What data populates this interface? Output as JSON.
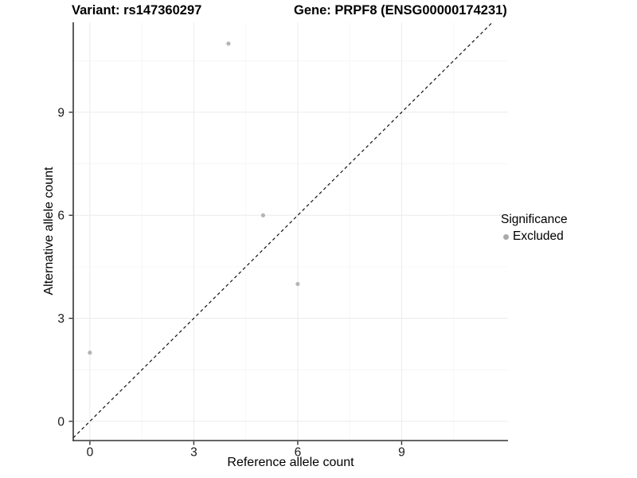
{
  "header": {
    "variant_title": "Variant: rs147360297",
    "gene_title": "Gene: PRPF8 (ENSG00000174231)"
  },
  "chart_data": {
    "type": "scatter",
    "xlabel": "Reference allele count",
    "ylabel": "Alternative allele count",
    "xlim": [
      -0.48,
      12.07
    ],
    "ylim": [
      -0.56,
      11.62
    ],
    "ticks": {
      "x": [
        0,
        3,
        6,
        9
      ],
      "y": [
        0,
        3,
        6,
        9
      ]
    },
    "grid": {
      "x_major": [
        0,
        3,
        6,
        9
      ],
      "x_minor": [
        1.5,
        4.5,
        7.5,
        10.5
      ],
      "y_major": [
        0,
        3,
        6,
        9
      ],
      "y_minor": [
        1.5,
        4.5,
        7.5,
        10.5
      ]
    },
    "series": [
      {
        "name": "Excluded",
        "color": "#b5b5b5",
        "points": [
          [
            0,
            2
          ],
          [
            4,
            11
          ],
          [
            5,
            6
          ],
          [
            6,
            4
          ]
        ]
      }
    ],
    "reference_line": {
      "slope": 1,
      "intercept": 0,
      "style": "dashed",
      "color": "#111111"
    },
    "legend": {
      "title": "Significance",
      "position": "right",
      "items": [
        {
          "label": "Excluded",
          "color": "#a9a9a9"
        }
      ]
    },
    "colors": {
      "grid_major": "#ebebeb",
      "grid_minor": "#f6f6f6",
      "axis_line": "#333333",
      "tick_label": "#1a1a1a"
    }
  }
}
